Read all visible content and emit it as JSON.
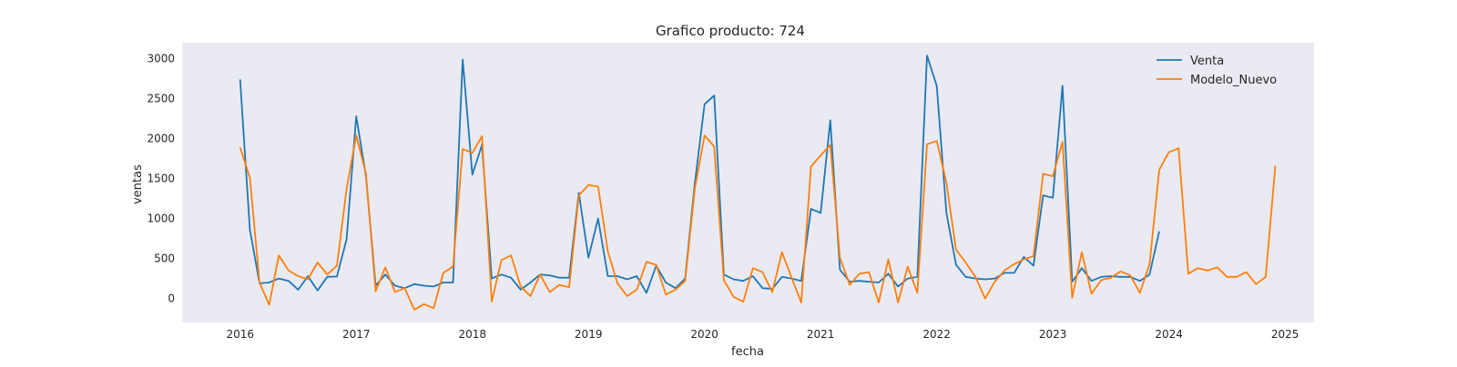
{
  "chart_data": {
    "type": "line",
    "title": "Grafico producto: 724",
    "xlabel": "fecha",
    "ylabel": "ventas",
    "x_ticks": [
      "2016",
      "2017",
      "2018",
      "2019",
      "2020",
      "2021",
      "2022",
      "2023",
      "2024",
      "2025"
    ],
    "y_ticks": [
      0,
      500,
      1000,
      1500,
      2000,
      2500,
      3000
    ],
    "xlim": [
      "2015-07",
      "2025-04"
    ],
    "ylim": [
      -300,
      3200
    ],
    "grid": false,
    "legend": "top-right",
    "series": [
      {
        "name": "Venta",
        "color": "#1f77b4",
        "start": "2016-01",
        "values": [
          2740,
          860,
          190,
          200,
          250,
          220,
          110,
          280,
          100,
          270,
          275,
          740,
          2280,
          1530,
          160,
          300,
          160,
          130,
          180,
          160,
          150,
          200,
          200,
          2990,
          1550,
          1920,
          250,
          300,
          260,
          110,
          200,
          300,
          290,
          260,
          260,
          1320,
          510,
          1000,
          280,
          280,
          240,
          280,
          70,
          410,
          200,
          130,
          250,
          1450,
          2430,
          2540,
          300,
          240,
          220,
          280,
          130,
          120,
          270,
          250,
          220,
          1120,
          1070,
          2230,
          360,
          210,
          220,
          210,
          200,
          310,
          150,
          250,
          270,
          3040,
          2660,
          1070,
          420,
          270,
          250,
          240,
          250,
          320,
          320,
          520,
          410,
          1290,
          1260,
          2660,
          210,
          380,
          220,
          270,
          280,
          270,
          270,
          220,
          300,
          840
        ]
      },
      {
        "name": "Modelo_Nuevo",
        "color": "#ff7f0e",
        "start": "2016-01",
        "values": [
          1890,
          1510,
          200,
          -80,
          540,
          350,
          280,
          240,
          450,
          300,
          410,
          1370,
          2040,
          1560,
          90,
          390,
          80,
          130,
          -140,
          -70,
          -120,
          320,
          400,
          1870,
          1820,
          2030,
          -40,
          480,
          540,
          150,
          30,
          300,
          80,
          170,
          140,
          1290,
          1420,
          1400,
          590,
          190,
          30,
          110,
          460,
          420,
          50,
          110,
          220,
          1380,
          2040,
          1900,
          230,
          20,
          -40,
          380,
          330,
          80,
          580,
          260,
          -50,
          1650,
          1790,
          1920,
          510,
          170,
          310,
          330,
          -50,
          490,
          -50,
          400,
          70,
          1930,
          1970,
          1450,
          610,
          450,
          270,
          0,
          210,
          350,
          430,
          490,
          530,
          1560,
          1530,
          1960,
          10,
          580,
          60,
          230,
          260,
          340,
          290,
          70,
          430,
          1610,
          1830,
          1880,
          310,
          380,
          350,
          390,
          270,
          270,
          330,
          180,
          270,
          1660
        ]
      }
    ]
  }
}
